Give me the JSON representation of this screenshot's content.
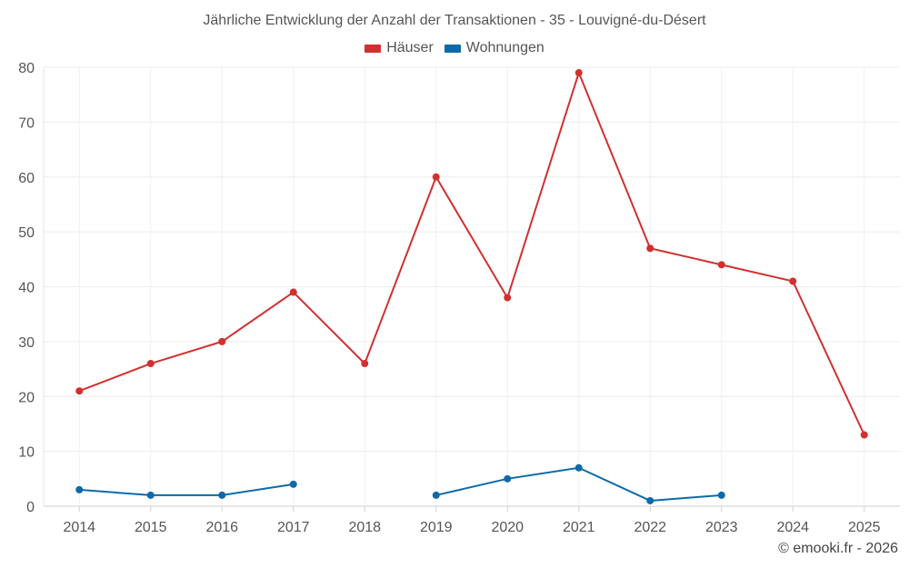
{
  "chart_data": {
    "type": "line",
    "title": "Jährliche Entwicklung der Anzahl der Transaktionen - 35 - Louvigné-du-Désert",
    "x": [
      "2014",
      "2015",
      "2016",
      "2017",
      "2018",
      "2019",
      "2020",
      "2021",
      "2022",
      "2023",
      "2024",
      "2025"
    ],
    "series": [
      {
        "name": "Häuser",
        "color": "#d32f2f",
        "values": [
          21,
          26,
          30,
          39,
          26,
          60,
          38,
          79,
          47,
          44,
          41,
          13
        ]
      },
      {
        "name": "Wohnungen",
        "color": "#0d6aa8",
        "values": [
          3,
          2,
          2,
          4,
          null,
          2,
          5,
          7,
          1,
          2,
          null,
          null
        ]
      }
    ],
    "ylim": [
      0,
      80
    ],
    "yticks": [
      0,
      10,
      20,
      30,
      40,
      50,
      60,
      70,
      80
    ],
    "grid": true,
    "legend": "top-center"
  },
  "footer": {
    "credit": "© emooki.fr - 2026"
  }
}
